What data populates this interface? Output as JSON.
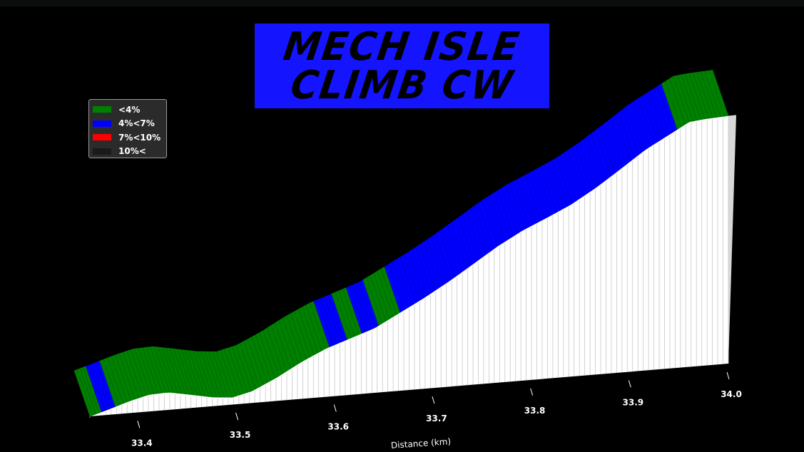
{
  "title": {
    "line1": "MECH ISLE",
    "line2": "CLIMB CW"
  },
  "colors": {
    "background": "#000000",
    "title_box": "#1414ff",
    "band_green": "#008000",
    "band_blue": "#0000ff",
    "band_red": "#ff0000",
    "band_black": "#1a1a1a",
    "wall_fill": "#ffffff"
  },
  "legend": {
    "placement": "upper-left",
    "items": [
      {
        "label": "<4%",
        "color": "#008000"
      },
      {
        "label": "4%<7%",
        "color": "#0000ff"
      },
      {
        "label": "7%<10%",
        "color": "#ff0000"
      },
      {
        "label": "10%<",
        "color": "#1a1a1a"
      }
    ]
  },
  "chart_data": {
    "type": "area",
    "view": "3d-ribbon",
    "xlabel": "Distance (km)",
    "xlim": [
      33.35,
      34.0
    ],
    "xticks": [
      "33.4",
      "33.5",
      "33.6",
      "33.7",
      "33.8",
      "33.9",
      "34.0"
    ],
    "grid": false,
    "legend_placement": "upper-left",
    "profile": {
      "x": [
        33.35,
        33.368,
        33.39,
        33.41,
        33.43,
        33.455,
        33.475,
        33.495,
        33.515,
        33.54,
        33.565,
        33.59,
        33.615,
        33.64,
        33.665,
        33.69,
        33.715,
        33.74,
        33.765,
        33.79,
        33.815,
        33.84,
        33.865,
        33.89,
        33.915,
        33.94,
        33.96,
        33.975,
        34.0
      ],
      "elevation": [
        0.0,
        2.0,
        4.6,
        6.5,
        6.8,
        5.0,
        3.5,
        2.8,
        4.6,
        9.0,
        14.2,
        18.6,
        21.8,
        25.0,
        30.0,
        35.0,
        40.5,
        46.5,
        52.6,
        57.8,
        62.0,
        66.4,
        72.0,
        78.4,
        85.0,
        90.2,
        94.4,
        95.0,
        95.5
      ]
    },
    "gradient_bands": [
      {
        "from": 33.35,
        "to": 33.362,
        "category": "<4%"
      },
      {
        "from": 33.362,
        "to": 33.376,
        "category": "4%<7%"
      },
      {
        "from": 33.376,
        "to": 33.594,
        "category": "<4%"
      },
      {
        "from": 33.594,
        "to": 33.612,
        "category": "4%<7%"
      },
      {
        "from": 33.612,
        "to": 33.627,
        "category": "<4%"
      },
      {
        "from": 33.627,
        "to": 33.644,
        "category": "4%<7%"
      },
      {
        "from": 33.644,
        "to": 33.666,
        "category": "<4%"
      },
      {
        "from": 33.666,
        "to": 33.948,
        "category": "4%<7%"
      },
      {
        "from": 33.948,
        "to": 34.0,
        "category": "<4%"
      }
    ]
  }
}
